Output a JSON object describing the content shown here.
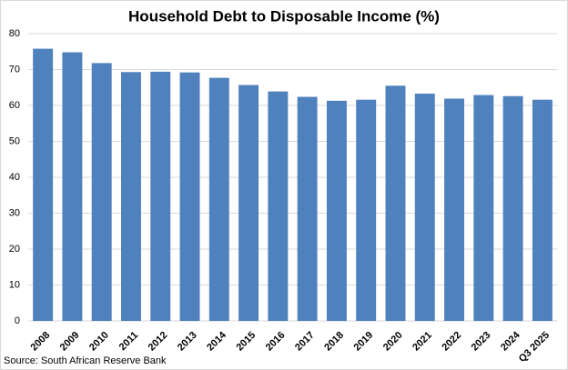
{
  "chart_data": {
    "type": "bar",
    "title": "Household Debt to Disposable Income (%)",
    "categories": [
      "2008",
      "2009",
      "2010",
      "2011",
      "2012",
      "2013",
      "2014",
      "2015",
      "2016",
      "2017",
      "2018",
      "2019",
      "2020",
      "2021",
      "2022",
      "2023",
      "2024",
      "Q3 2025"
    ],
    "values": [
      75.8,
      74.8,
      71.8,
      69.3,
      69.4,
      69.2,
      67.7,
      65.7,
      63.9,
      62.4,
      61.3,
      61.6,
      65.5,
      63.3,
      61.9,
      62.9,
      62.6,
      61.6
    ],
    "color": "#4f81bd",
    "ylim": [
      0,
      80
    ],
    "yticks": [
      0,
      10,
      20,
      30,
      40,
      50,
      60,
      70,
      80
    ],
    "grid": true,
    "source": "Source: South African Reserve Bank"
  }
}
